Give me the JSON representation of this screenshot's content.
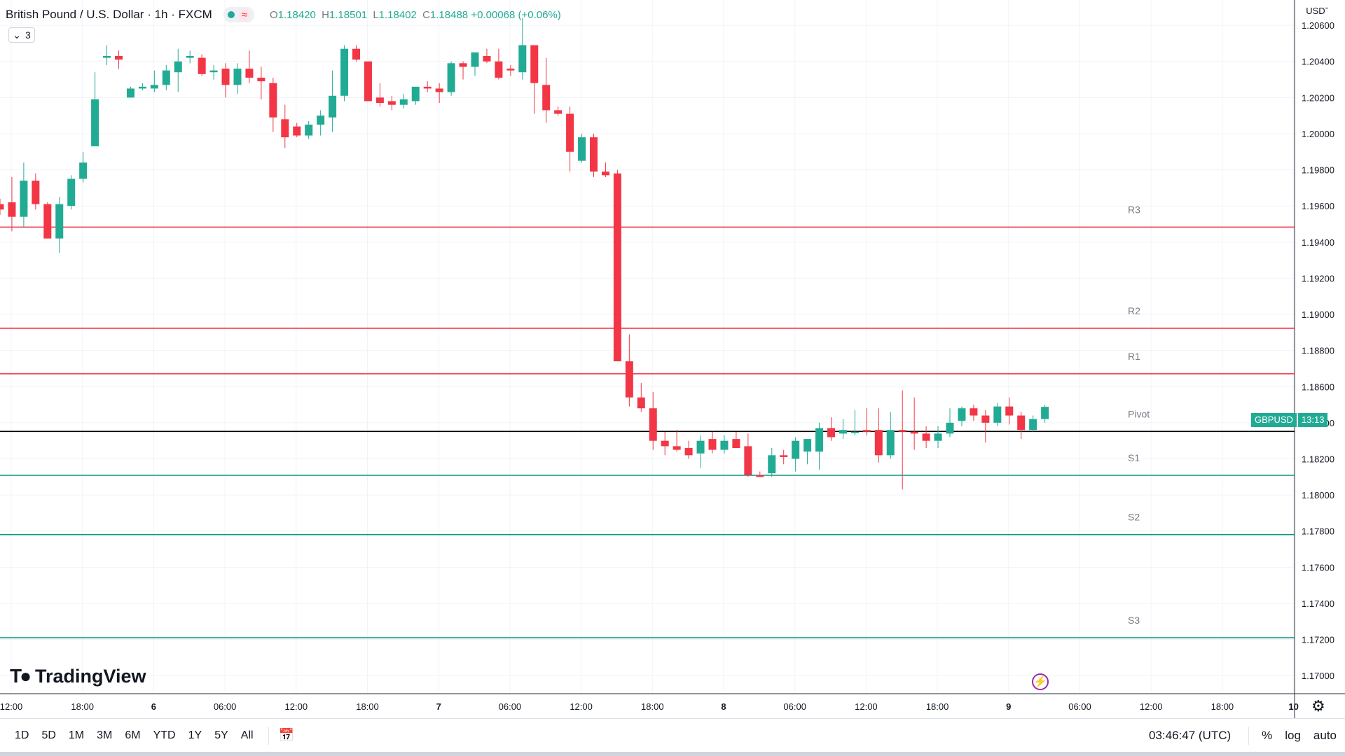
{
  "legend": {
    "symbol": "British Pound / U.S. Dollar · 1h · FXCM",
    "o_key": "O",
    "o_val": "1.18420",
    "h_key": "H",
    "h_val": "1.18501",
    "l_key": "L",
    "l_val": "1.18402",
    "c_key": "C",
    "c_val": "1.18488",
    "change": "+0.00068 (+0.06%)",
    "wave_icon": "≈"
  },
  "indicators_toggle": {
    "count": "3"
  },
  "currency_label": "USD",
  "price_badge": {
    "symbol": "GBPUSD",
    "countdown": "13:13"
  },
  "branding": {
    "logo_text": "TradingView"
  },
  "bottom_bar": {
    "ranges": [
      "1D",
      "5D",
      "1M",
      "3M",
      "6M",
      "YTD",
      "1Y",
      "5Y",
      "All"
    ],
    "clock": "03:46:47 (UTC)",
    "percent": "%",
    "log": "log",
    "auto": "auto"
  },
  "colors": {
    "up": "#22ab94",
    "down": "#f23645",
    "resistance": "#f23645",
    "support": "#089981",
    "pivot": "#000000"
  },
  "chart_data": {
    "type": "candlestick",
    "title": "British Pound / U.S. Dollar · 1h · FXCM",
    "ylim": [
      1.169,
      1.2074
    ],
    "y_ticks": [
      "1.17000",
      "1.17200",
      "1.17400",
      "1.17600",
      "1.17800",
      "1.18000",
      "1.18200",
      "1.18400",
      "1.18600",
      "1.18800",
      "1.19000",
      "1.19200",
      "1.19400",
      "1.19600",
      "1.19800",
      "1.20000",
      "1.20200",
      "1.20400",
      "1.20600"
    ],
    "x_ticks": [
      "12:00",
      "18:00",
      "6",
      "06:00",
      "12:00",
      "18:00",
      "7",
      "06:00",
      "12:00",
      "18:00",
      "8",
      "06:00",
      "12:00",
      "18:00",
      "9",
      "06:00",
      "12:00",
      "18:00",
      "10"
    ],
    "levels": [
      {
        "label": "R3",
        "value": 1.19483,
        "kind": "resistance"
      },
      {
        "label": "R2",
        "value": 1.18923,
        "kind": "resistance"
      },
      {
        "label": "R1",
        "value": 1.18671,
        "kind": "resistance"
      },
      {
        "label": "Pivot",
        "value": 1.18352,
        "kind": "pivot"
      },
      {
        "label": "S1",
        "value": 1.18109,
        "kind": "support"
      },
      {
        "label": "S2",
        "value": 1.17781,
        "kind": "support"
      },
      {
        "label": "S3",
        "value": 1.1721,
        "kind": "support"
      }
    ],
    "candles": [
      {
        "o": 1.1961,
        "h": 1.1964,
        "l": 1.1955,
        "c": 1.1958
      },
      {
        "o": 1.1962,
        "h": 1.1976,
        "l": 1.1946,
        "c": 1.1954
      },
      {
        "o": 1.1954,
        "h": 1.1984,
        "l": 1.1948,
        "c": 1.1974
      },
      {
        "o": 1.1974,
        "h": 1.1978,
        "l": 1.1958,
        "c": 1.1961
      },
      {
        "o": 1.1961,
        "h": 1.1962,
        "l": 1.1942,
        "c": 1.1942
      },
      {
        "o": 1.1942,
        "h": 1.1965,
        "l": 1.1934,
        "c": 1.1961
      },
      {
        "o": 1.196,
        "h": 1.1977,
        "l": 1.1958,
        "c": 1.1975
      },
      {
        "o": 1.1975,
        "h": 1.199,
        "l": 1.1973,
        "c": 1.1984
      },
      {
        "o": 1.1993,
        "h": 1.2034,
        "l": 1.1993,
        "c": 1.2019
      },
      {
        "o": 1.2042,
        "h": 1.2049,
        "l": 1.2038,
        "c": 1.2043
      },
      {
        "o": 1.2043,
        "h": 1.2046,
        "l": 1.2036,
        "c": 1.2041
      },
      {
        "o": 1.202,
        "h": 1.2026,
        "l": 1.202,
        "c": 1.2025
      },
      {
        "o": 1.2025,
        "h": 1.2028,
        "l": 1.2024,
        "c": 1.2026
      },
      {
        "o": 1.2025,
        "h": 1.2035,
        "l": 1.2023,
        "c": 1.2027
      },
      {
        "o": 1.2027,
        "h": 1.2038,
        "l": 1.2024,
        "c": 1.2035
      },
      {
        "o": 1.2034,
        "h": 1.2047,
        "l": 1.2023,
        "c": 1.204
      },
      {
        "o": 1.2042,
        "h": 1.2046,
        "l": 1.2039,
        "c": 1.2043
      },
      {
        "o": 1.2042,
        "h": 1.2044,
        "l": 1.2032,
        "c": 1.2033
      },
      {
        "o": 1.2034,
        "h": 1.2038,
        "l": 1.203,
        "c": 1.2035
      },
      {
        "o": 1.2036,
        "h": 1.2039,
        "l": 1.202,
        "c": 1.2027
      },
      {
        "o": 1.2027,
        "h": 1.2039,
        "l": 1.2022,
        "c": 1.2036
      },
      {
        "o": 1.2036,
        "h": 1.2046,
        "l": 1.2028,
        "c": 1.2031
      },
      {
        "o": 1.2031,
        "h": 1.2037,
        "l": 1.2019,
        "c": 1.2029
      },
      {
        "o": 1.2028,
        "h": 1.2031,
        "l": 1.2001,
        "c": 1.2009
      },
      {
        "o": 1.2008,
        "h": 1.2016,
        "l": 1.1992,
        "c": 1.1998
      },
      {
        "o": 1.2004,
        "h": 1.2006,
        "l": 1.1998,
        "c": 1.1999
      },
      {
        "o": 1.1999,
        "h": 1.2007,
        "l": 1.1997,
        "c": 1.2005
      },
      {
        "o": 1.2005,
        "h": 1.2013,
        "l": 1.1999,
        "c": 1.201
      },
      {
        "o": 1.2009,
        "h": 1.2035,
        "l": 1.2001,
        "c": 1.2021
      },
      {
        "o": 1.2021,
        "h": 1.2049,
        "l": 1.2018,
        "c": 1.2047
      },
      {
        "o": 1.2047,
        "h": 1.2049,
        "l": 1.204,
        "c": 1.2041
      },
      {
        "o": 1.204,
        "h": 1.204,
        "l": 1.2021,
        "c": 1.2018
      },
      {
        "o": 1.202,
        "h": 1.2028,
        "l": 1.2015,
        "c": 1.2017
      },
      {
        "o": 1.2018,
        "h": 1.2021,
        "l": 1.2013,
        "c": 1.2016
      },
      {
        "o": 1.2016,
        "h": 1.2022,
        "l": 1.2014,
        "c": 1.2019
      },
      {
        "o": 1.2018,
        "h": 1.2023,
        "l": 1.2016,
        "c": 1.2026
      },
      {
        "o": 1.2026,
        "h": 1.2029,
        "l": 1.2023,
        "c": 1.2025
      },
      {
        "o": 1.2025,
        "h": 1.2028,
        "l": 1.2017,
        "c": 1.2023
      },
      {
        "o": 1.2023,
        "h": 1.204,
        "l": 1.2021,
        "c": 1.2039
      },
      {
        "o": 1.2039,
        "h": 1.204,
        "l": 1.203,
        "c": 1.2037
      },
      {
        "o": 1.2037,
        "h": 1.2045,
        "l": 1.2032,
        "c": 1.2045
      },
      {
        "o": 1.2043,
        "h": 1.2047,
        "l": 1.2039,
        "c": 1.204
      },
      {
        "o": 1.204,
        "h": 1.2047,
        "l": 1.203,
        "c": 1.2031
      },
      {
        "o": 1.2036,
        "h": 1.2038,
        "l": 1.2032,
        "c": 1.2035
      },
      {
        "o": 1.2034,
        "h": 1.2064,
        "l": 1.203,
        "c": 1.2049
      },
      {
        "o": 1.2049,
        "h": 1.2049,
        "l": 1.2011,
        "c": 1.2028
      },
      {
        "o": 1.2027,
        "h": 1.2042,
        "l": 1.2006,
        "c": 1.2013
      },
      {
        "o": 1.2013,
        "h": 1.2015,
        "l": 1.201,
        "c": 1.2011
      },
      {
        "o": 1.2011,
        "h": 1.2015,
        "l": 1.1979,
        "c": 1.199
      },
      {
        "o": 1.1985,
        "h": 1.2,
        "l": 1.1984,
        "c": 1.1998
      },
      {
        "o": 1.1998,
        "h": 1.2,
        "l": 1.1976,
        "c": 1.1979
      },
      {
        "o": 1.1979,
        "h": 1.1984,
        "l": 1.1976,
        "c": 1.1977
      },
      {
        "o": 1.1978,
        "h": 1.198,
        "l": 1.1874,
        "c": 1.1874
      },
      {
        "o": 1.1874,
        "h": 1.1889,
        "l": 1.1849,
        "c": 1.1854
      },
      {
        "o": 1.1854,
        "h": 1.1862,
        "l": 1.1846,
        "c": 1.1848
      },
      {
        "o": 1.1848,
        "h": 1.1857,
        "l": 1.1825,
        "c": 1.183
      },
      {
        "o": 1.183,
        "h": 1.1835,
        "l": 1.1822,
        "c": 1.1827
      },
      {
        "o": 1.1827,
        "h": 1.1836,
        "l": 1.1824,
        "c": 1.1825
      },
      {
        "o": 1.1826,
        "h": 1.183,
        "l": 1.182,
        "c": 1.1822
      },
      {
        "o": 1.1823,
        "h": 1.1833,
        "l": 1.1815,
        "c": 1.183
      },
      {
        "o": 1.1831,
        "h": 1.1835,
        "l": 1.1823,
        "c": 1.1825
      },
      {
        "o": 1.1825,
        "h": 1.1833,
        "l": 1.1823,
        "c": 1.183
      },
      {
        "o": 1.1831,
        "h": 1.1835,
        "l": 1.1826,
        "c": 1.1826
      },
      {
        "o": 1.1827,
        "h": 1.1834,
        "l": 1.181,
        "c": 1.1811
      },
      {
        "o": 1.1811,
        "h": 1.1813,
        "l": 1.181,
        "c": 1.181
      },
      {
        "o": 1.1812,
        "h": 1.1826,
        "l": 1.181,
        "c": 1.1822
      },
      {
        "o": 1.1822,
        "h": 1.1825,
        "l": 1.1817,
        "c": 1.1821
      },
      {
        "o": 1.182,
        "h": 1.1832,
        "l": 1.1813,
        "c": 1.183
      },
      {
        "o": 1.1824,
        "h": 1.1831,
        "l": 1.1817,
        "c": 1.1831
      },
      {
        "o": 1.1824,
        "h": 1.184,
        "l": 1.1814,
        "c": 1.1837
      },
      {
        "o": 1.1837,
        "h": 1.1843,
        "l": 1.183,
        "c": 1.1832
      },
      {
        "o": 1.1834,
        "h": 1.1842,
        "l": 1.1831,
        "c": 1.1836
      },
      {
        "o": 1.1835,
        "h": 1.1847,
        "l": 1.1833,
        "c": 1.1835
      },
      {
        "o": 1.1836,
        "h": 1.1848,
        "l": 1.1833,
        "c": 1.1835
      },
      {
        "o": 1.1836,
        "h": 1.1848,
        "l": 1.1818,
        "c": 1.1822
      },
      {
        "o": 1.1822,
        "h": 1.1846,
        "l": 1.182,
        "c": 1.1836
      },
      {
        "o": 1.1836,
        "h": 1.1858,
        "l": 1.1803,
        "c": 1.1835
      },
      {
        "o": 1.1835,
        "h": 1.1854,
        "l": 1.1825,
        "c": 1.1834
      },
      {
        "o": 1.1834,
        "h": 1.1838,
        "l": 1.1826,
        "c": 1.183
      },
      {
        "o": 1.183,
        "h": 1.1838,
        "l": 1.1826,
        "c": 1.1834
      },
      {
        "o": 1.1834,
        "h": 1.1848,
        "l": 1.1832,
        "c": 1.184
      },
      {
        "o": 1.1841,
        "h": 1.1849,
        "l": 1.1838,
        "c": 1.1848
      },
      {
        "o": 1.1848,
        "h": 1.185,
        "l": 1.1841,
        "c": 1.1844
      },
      {
        "o": 1.1844,
        "h": 1.1847,
        "l": 1.1829,
        "c": 1.184
      },
      {
        "o": 1.184,
        "h": 1.1851,
        "l": 1.1838,
        "c": 1.1849
      },
      {
        "o": 1.1849,
        "h": 1.1854,
        "l": 1.1839,
        "c": 1.1844
      },
      {
        "o": 1.1844,
        "h": 1.1846,
        "l": 1.1831,
        "c": 1.1836
      },
      {
        "o": 1.1836,
        "h": 1.1844,
        "l": 1.1835,
        "c": 1.1842
      },
      {
        "o": 1.1842,
        "h": 1.185,
        "l": 1.184,
        "c": 1.18488
      }
    ]
  }
}
